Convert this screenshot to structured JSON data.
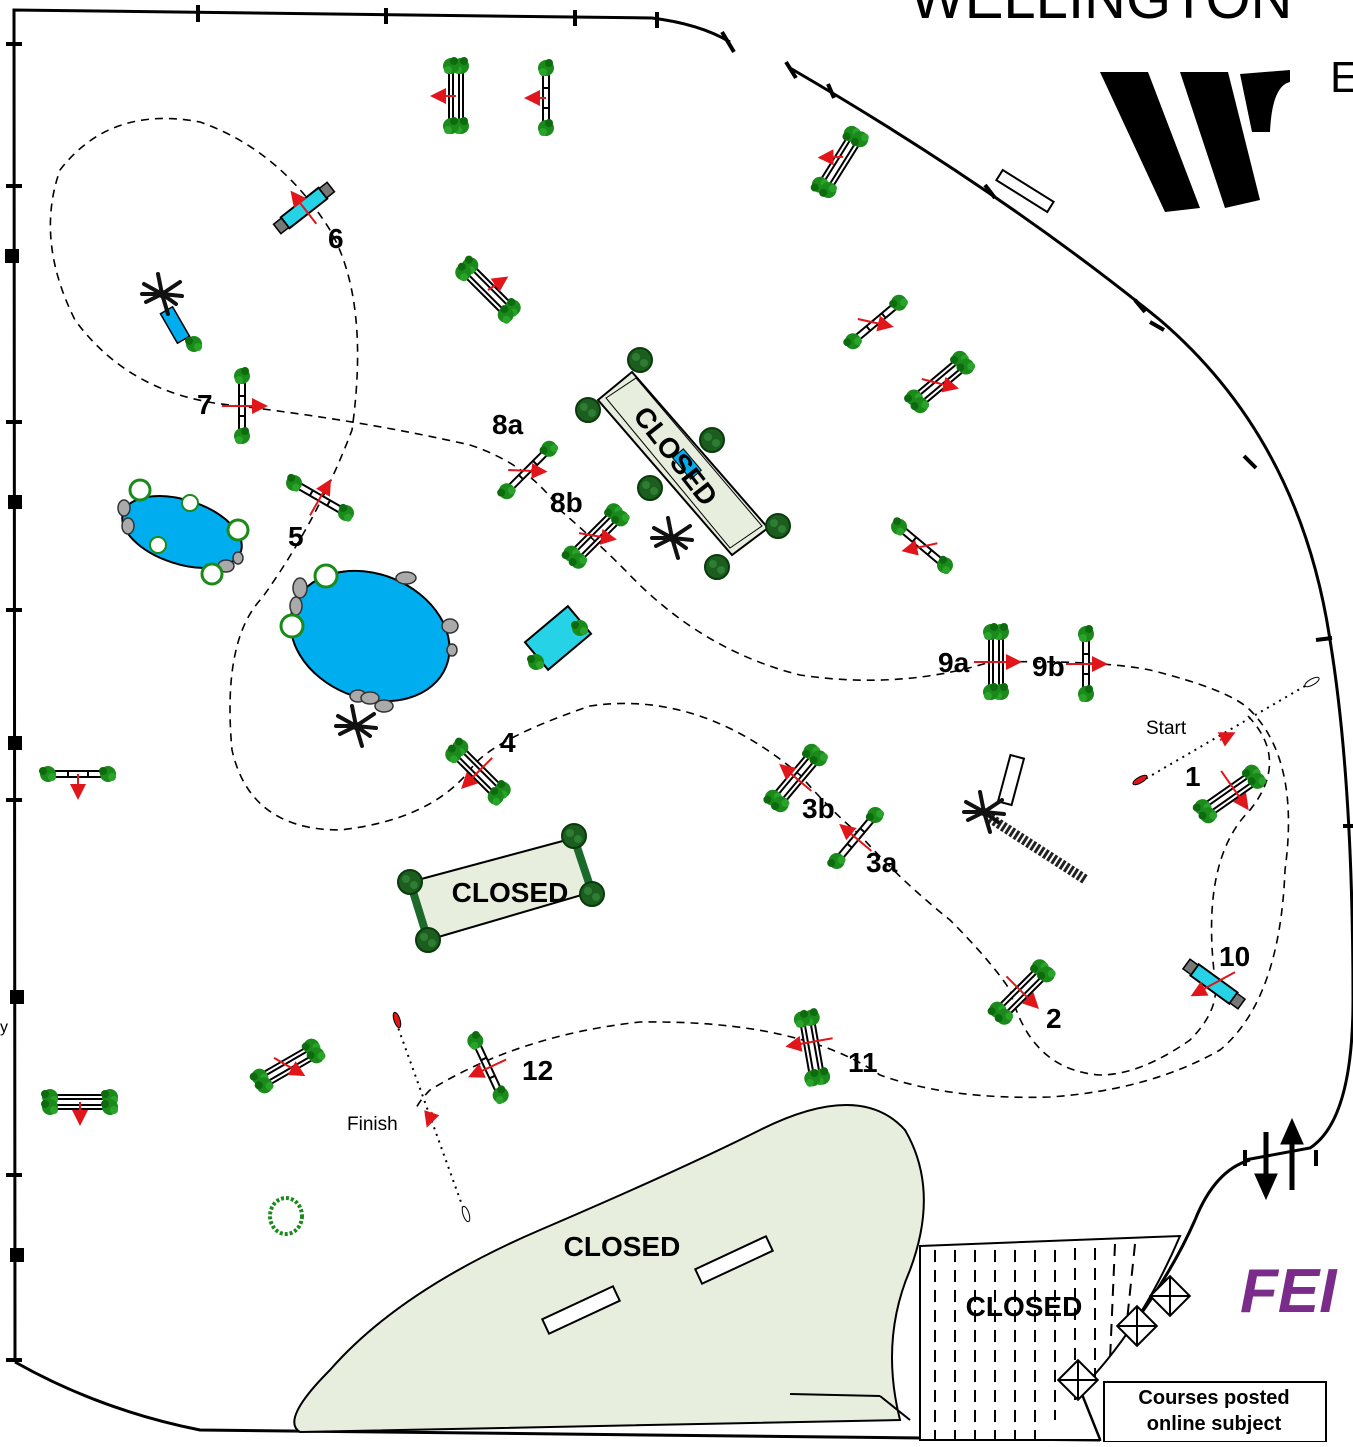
{
  "header": {
    "brand_text": "WELLINGTON",
    "brand_sub": "E",
    "fei_text": "FEI"
  },
  "course": {
    "start_label": "Start",
    "finish_label": "Finish",
    "fence_numbers": [
      "1",
      "2",
      "3a",
      "3b",
      "4",
      "5",
      "6",
      "7",
      "8a",
      "8b",
      "9a",
      "9b",
      "10",
      "11",
      "12"
    ],
    "closed_label": "CLOSED",
    "note_lines": [
      "Courses posted",
      "online subject"
    ],
    "edge_char": "y"
  },
  "colors": {
    "water": "#00aeef",
    "closed_fill": "#e8eedd",
    "foliage": "#1a8a1a",
    "arrow": "#e0161b",
    "fei_purple": "#7b2c8a",
    "jump_cyan": "#26d3e6"
  }
}
